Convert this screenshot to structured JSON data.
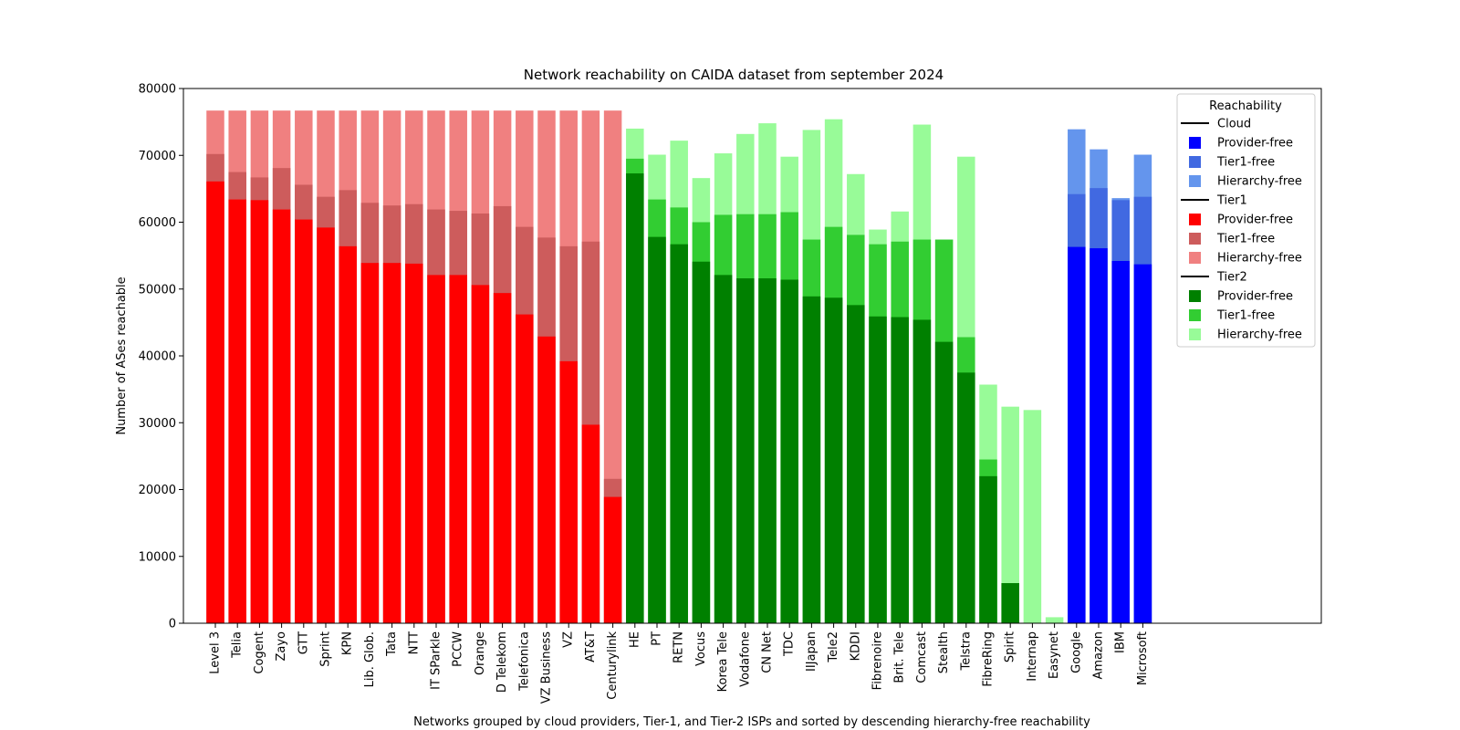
{
  "chart_data": {
    "type": "bar",
    "stacked": true,
    "title": "Network reachability on CAIDA dataset from september 2024",
    "xlabel": "Networks grouped by cloud providers, Tier-1, and Tier-2 ISPs and sorted by descending hierarchy-free reachability",
    "ylabel": "Number of ASes reachable",
    "ylim": [
      0,
      80000
    ],
    "yticks": [
      0,
      10000,
      20000,
      30000,
      40000,
      50000,
      60000,
      70000,
      80000
    ],
    "ytick_labels": [
      "0",
      "10000",
      "20000",
      "30000",
      "40000",
      "50000",
      "60000",
      "70000",
      "80000"
    ],
    "grid": false,
    "legend": {
      "title": "Reachability",
      "position": "top-right",
      "groups": [
        {
          "name": "Cloud",
          "entries": [
            {
              "label": "Provider-free",
              "color": "#0000ff"
            },
            {
              "label": "Tier1-free",
              "color": "#4169e1"
            },
            {
              "label": "Hierarchy-free",
              "color": "#6495ed"
            }
          ]
        },
        {
          "name": "Tier1",
          "entries": [
            {
              "label": "Provider-free",
              "color": "#ff0000"
            },
            {
              "label": "Tier1-free",
              "color": "#cd5c5c"
            },
            {
              "label": "Hierarchy-free",
              "color": "#f08080"
            }
          ]
        },
        {
          "name": "Tier2",
          "entries": [
            {
              "label": "Provider-free",
              "color": "#008000"
            },
            {
              "label": "Tier1-free",
              "color": "#32cd32"
            },
            {
              "label": "Hierarchy-free",
              "color": "#98fb98"
            }
          ]
        }
      ]
    },
    "networks": [
      {
        "name": "Level 3",
        "group": "Tier1",
        "provider_free": 66100,
        "tier1_free": 70200,
        "hierarchy_free": 76700
      },
      {
        "name": "Telia",
        "group": "Tier1",
        "provider_free": 63400,
        "tier1_free": 67500,
        "hierarchy_free": 76700
      },
      {
        "name": "Cogent",
        "group": "Tier1",
        "provider_free": 63300,
        "tier1_free": 66700,
        "hierarchy_free": 76700
      },
      {
        "name": "Zayo",
        "group": "Tier1",
        "provider_free": 61900,
        "tier1_free": 68100,
        "hierarchy_free": 76700
      },
      {
        "name": "GTT",
        "group": "Tier1",
        "provider_free": 60400,
        "tier1_free": 65600,
        "hierarchy_free": 76700
      },
      {
        "name": "Sprint",
        "group": "Tier1",
        "provider_free": 59200,
        "tier1_free": 63800,
        "hierarchy_free": 76700
      },
      {
        "name": "KPN",
        "group": "Tier1",
        "provider_free": 56400,
        "tier1_free": 64800,
        "hierarchy_free": 76700
      },
      {
        "name": "Lib. Glob.",
        "group": "Tier1",
        "provider_free": 53900,
        "tier1_free": 62900,
        "hierarchy_free": 76700
      },
      {
        "name": "Tata",
        "group": "Tier1",
        "provider_free": 53900,
        "tier1_free": 62500,
        "hierarchy_free": 76700
      },
      {
        "name": "NTT",
        "group": "Tier1",
        "provider_free": 53800,
        "tier1_free": 62700,
        "hierarchy_free": 76700
      },
      {
        "name": "IT SParkle",
        "group": "Tier1",
        "provider_free": 52100,
        "tier1_free": 61900,
        "hierarchy_free": 76700
      },
      {
        "name": "PCCW",
        "group": "Tier1",
        "provider_free": 52100,
        "tier1_free": 61700,
        "hierarchy_free": 76700
      },
      {
        "name": "Orange",
        "group": "Tier1",
        "provider_free": 50600,
        "tier1_free": 61300,
        "hierarchy_free": 76700
      },
      {
        "name": "D Telekom",
        "group": "Tier1",
        "provider_free": 49400,
        "tier1_free": 62400,
        "hierarchy_free": 76700
      },
      {
        "name": "Telefonica",
        "group": "Tier1",
        "provider_free": 46200,
        "tier1_free": 59300,
        "hierarchy_free": 76700
      },
      {
        "name": "VZ Business",
        "group": "Tier1",
        "provider_free": 42900,
        "tier1_free": 57700,
        "hierarchy_free": 76700
      },
      {
        "name": "VZ",
        "group": "Tier1",
        "provider_free": 39200,
        "tier1_free": 56400,
        "hierarchy_free": 76700
      },
      {
        "name": "AT&T",
        "group": "Tier1",
        "provider_free": 29700,
        "tier1_free": 57100,
        "hierarchy_free": 76700
      },
      {
        "name": "Centurylink",
        "group": "Tier1",
        "provider_free": 18900,
        "tier1_free": 21600,
        "hierarchy_free": 76700
      },
      {
        "name": "HE",
        "group": "Tier2",
        "provider_free": 67300,
        "tier1_free": 69500,
        "hierarchy_free": 74000
      },
      {
        "name": "PT",
        "group": "Tier2",
        "provider_free": 57800,
        "tier1_free": 63400,
        "hierarchy_free": 70100
      },
      {
        "name": "RETN",
        "group": "Tier2",
        "provider_free": 56700,
        "tier1_free": 62200,
        "hierarchy_free": 72200
      },
      {
        "name": "Vocus",
        "group": "Tier2",
        "provider_free": 54100,
        "tier1_free": 60000,
        "hierarchy_free": 66600
      },
      {
        "name": "Korea Tele",
        "group": "Tier2",
        "provider_free": 52100,
        "tier1_free": 61100,
        "hierarchy_free": 70300
      },
      {
        "name": "Vodafone",
        "group": "Tier2",
        "provider_free": 51600,
        "tier1_free": 61200,
        "hierarchy_free": 73200
      },
      {
        "name": "CN Net",
        "group": "Tier2",
        "provider_free": 51600,
        "tier1_free": 61200,
        "hierarchy_free": 74800
      },
      {
        "name": "TDC",
        "group": "Tier2",
        "provider_free": 51400,
        "tier1_free": 61500,
        "hierarchy_free": 69800
      },
      {
        "name": "IIJapan",
        "group": "Tier2",
        "provider_free": 48900,
        "tier1_free": 57400,
        "hierarchy_free": 73800
      },
      {
        "name": "Tele2",
        "group": "Tier2",
        "provider_free": 48700,
        "tier1_free": 59300,
        "hierarchy_free": 75400
      },
      {
        "name": "KDDI",
        "group": "Tier2",
        "provider_free": 47600,
        "tier1_free": 58100,
        "hierarchy_free": 67200
      },
      {
        "name": "Fibrenoire",
        "group": "Tier2",
        "provider_free": 45900,
        "tier1_free": 56700,
        "hierarchy_free": 58900
      },
      {
        "name": "Brit. Tele",
        "group": "Tier2",
        "provider_free": 45800,
        "tier1_free": 57100,
        "hierarchy_free": 61600
      },
      {
        "name": "Comcast",
        "group": "Tier2",
        "provider_free": 45400,
        "tier1_free": 57400,
        "hierarchy_free": 74600
      },
      {
        "name": "Stealth",
        "group": "Tier2",
        "provider_free": 42100,
        "tier1_free": 57400,
        "hierarchy_free": 57400
      },
      {
        "name": "Telstra",
        "group": "Tier2",
        "provider_free": 37500,
        "tier1_free": 42800,
        "hierarchy_free": 69800
      },
      {
        "name": "FibreRing",
        "group": "Tier2",
        "provider_free": 22000,
        "tier1_free": 24500,
        "hierarchy_free": 35700
      },
      {
        "name": "Spirit",
        "group": "Tier2",
        "provider_free": 6000,
        "tier1_free": 6000,
        "hierarchy_free": 32400
      },
      {
        "name": "Internap",
        "group": "Tier2",
        "provider_free": 0,
        "tier1_free": 0,
        "hierarchy_free": 31900
      },
      {
        "name": "Easynet",
        "group": "Tier2",
        "provider_free": 0,
        "tier1_free": 0,
        "hierarchy_free": 900
      },
      {
        "name": "Google",
        "group": "Cloud",
        "provider_free": 56300,
        "tier1_free": 64200,
        "hierarchy_free": 73900
      },
      {
        "name": "Amazon",
        "group": "Cloud",
        "provider_free": 56100,
        "tier1_free": 65100,
        "hierarchy_free": 70900
      },
      {
        "name": "IBM",
        "group": "Cloud",
        "provider_free": 54200,
        "tier1_free": 63300,
        "hierarchy_free": 63600
      },
      {
        "name": "Microsoft",
        "group": "Cloud",
        "provider_free": 53700,
        "tier1_free": 63800,
        "hierarchy_free": 70100
      }
    ]
  }
}
